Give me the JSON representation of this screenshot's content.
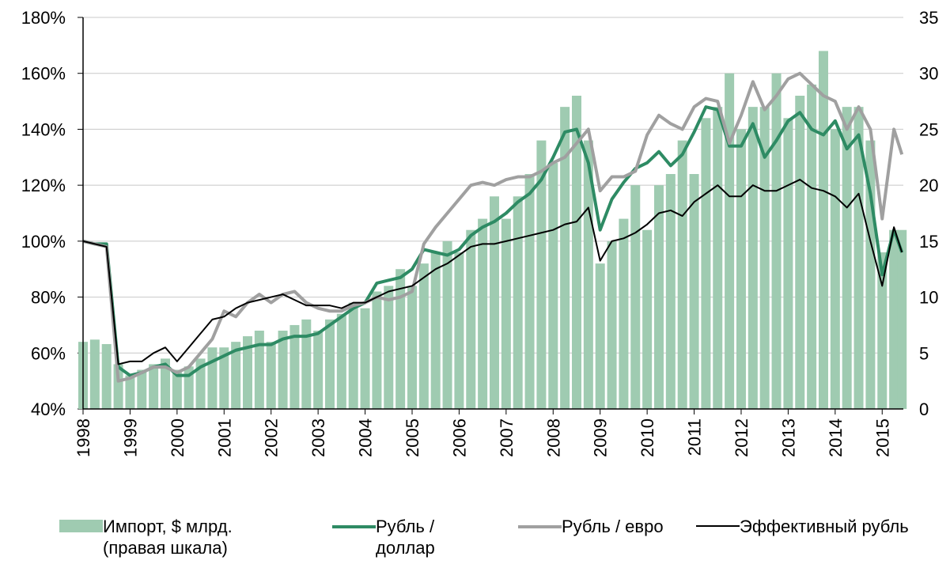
{
  "chart_data": {
    "type": "combo",
    "x": [
      1998,
      1998.25,
      1998.5,
      1998.75,
      1999,
      1999.25,
      1999.5,
      1999.75,
      2000,
      2000.25,
      2000.5,
      2000.75,
      2001,
      2001.25,
      2001.5,
      2001.75,
      2002,
      2002.25,
      2002.5,
      2002.75,
      2003,
      2003.25,
      2003.5,
      2003.75,
      2004,
      2004.25,
      2004.5,
      2004.75,
      2005,
      2005.25,
      2005.5,
      2005.75,
      2006,
      2006.25,
      2006.5,
      2006.75,
      2007,
      2007.25,
      2007.5,
      2007.75,
      2008,
      2008.25,
      2008.5,
      2008.75,
      2009,
      2009.25,
      2009.5,
      2009.75,
      2010,
      2010.25,
      2010.5,
      2010.75,
      2011,
      2011.25,
      2011.5,
      2011.75,
      2012,
      2012.25,
      2012.5,
      2012.75,
      2013,
      2013.25,
      2013.5,
      2013.75,
      2014,
      2014.25,
      2014.5,
      2014.75,
      2015,
      2015.25,
      2015.42
    ],
    "xlim": [
      1998,
      2015.45
    ],
    "xticks": [
      1998,
      1999,
      2000,
      2001,
      2002,
      2003,
      2004,
      2005,
      2006,
      2007,
      2008,
      2009,
      2010,
      2011,
      2012,
      2013,
      2014,
      2015
    ],
    "ylim": [
      40,
      180
    ],
    "yticks": [
      {
        "value": 40,
        "label": "40%"
      },
      {
        "value": 60,
        "label": "60%"
      },
      {
        "value": 80,
        "label": "80%"
      },
      {
        "value": 100,
        "label": "100%"
      },
      {
        "value": 120,
        "label": "120%"
      },
      {
        "value": 140,
        "label": "140%"
      },
      {
        "value": 160,
        "label": "160%"
      },
      {
        "value": 180,
        "label": "180%"
      }
    ],
    "y2lim": [
      0,
      35
    ],
    "y2ticks": [
      0,
      5,
      10,
      15,
      20,
      25,
      30,
      35
    ],
    "grid": true,
    "legend": "bottom",
    "series": [
      {
        "name": "Импорт, $ млрд. (правая шкала)",
        "type": "bar",
        "axis": "y2",
        "color": "#9fcbb1",
        "values": [
          6,
          6.2,
          5.8,
          4,
          3,
          3.5,
          4,
          4.5,
          3.5,
          3.8,
          4.5,
          5.5,
          5.5,
          6,
          6.5,
          7,
          6,
          7,
          7.5,
          8,
          7,
          8,
          8.5,
          9.5,
          9,
          10.5,
          11,
          12.5,
          11,
          13,
          14,
          15,
          14,
          16,
          17,
          19,
          17,
          19,
          21,
          24,
          22,
          27,
          28,
          24,
          13,
          15,
          17,
          20,
          16,
          20,
          21,
          24,
          21,
          26,
          27,
          30,
          25,
          27,
          27,
          30,
          26,
          28,
          29,
          32,
          25,
          27,
          27,
          24,
          14,
          16,
          16
        ]
      },
      {
        "name": "Рубль / доллар",
        "type": "line",
        "color": "#2e8b64",
        "width": 4,
        "values": [
          100,
          99,
          99,
          55,
          52,
          53,
          55,
          56,
          52,
          52,
          55,
          57,
          59,
          61,
          62,
          63,
          63,
          65,
          66,
          66,
          67,
          70,
          73,
          76,
          78,
          85,
          86,
          87,
          90,
          97,
          96,
          95,
          97,
          102,
          105,
          107,
          110,
          114,
          117,
          122,
          130,
          139,
          140,
          128,
          104,
          115,
          121,
          126,
          128,
          132,
          127,
          131,
          139,
          148,
          147,
          134,
          134,
          142,
          130,
          136,
          143,
          146,
          140,
          138,
          143,
          133,
          138,
          117,
          88,
          104,
          96
        ]
      },
      {
        "name": "Рубль / евро",
        "type": "line",
        "color": "#a0a0a0",
        "width": 4,
        "values": [
          100,
          99,
          98,
          50,
          51,
          53,
          55,
          55,
          53,
          55,
          60,
          65,
          75,
          73,
          78,
          81,
          78,
          81,
          82,
          78,
          76,
          75,
          75,
          77,
          78,
          80,
          79,
          80,
          82,
          99,
          105,
          110,
          115,
          120,
          121,
          120,
          122,
          123,
          123,
          125,
          128,
          130,
          135,
          140,
          118,
          123,
          123,
          125,
          138,
          145,
          142,
          140,
          148,
          151,
          150,
          135,
          145,
          157,
          147,
          152,
          158,
          160,
          156,
          152,
          150,
          140,
          148,
          140,
          108,
          140,
          131
        ]
      },
      {
        "name": "Эффективный рубль",
        "type": "line",
        "color": "#000000",
        "width": 2,
        "values": [
          100,
          99,
          98,
          56,
          57,
          57,
          60,
          62,
          57,
          62,
          67,
          72,
          73,
          76,
          78,
          79,
          80,
          81,
          79,
          77,
          77,
          77,
          76,
          78,
          78,
          80,
          82,
          83,
          84,
          87,
          90,
          92,
          95,
          98,
          99,
          99,
          100,
          101,
          102,
          103,
          104,
          106,
          107,
          112,
          93,
          100,
          101,
          103,
          106,
          110,
          111,
          109,
          114,
          117,
          120,
          116,
          116,
          120,
          118,
          118,
          120,
          122,
          119,
          118,
          116,
          112,
          117,
          100,
          84,
          105,
          96
        ]
      }
    ]
  }
}
